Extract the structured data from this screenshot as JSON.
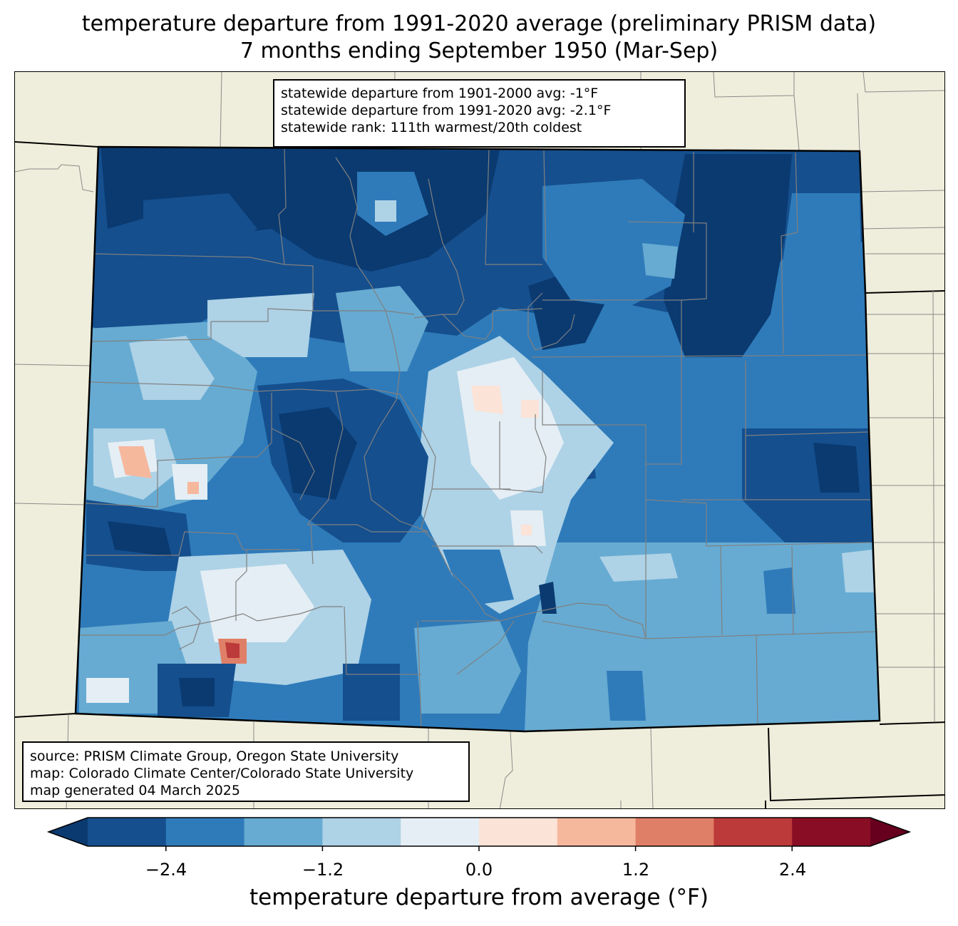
{
  "title_line1": "temperature departure from 1991-2020 average (preliminary PRISM data)",
  "title_line2": "7 months ending September 1950 (Mar-Sep)",
  "stats": {
    "line1": "statewide departure from 1901-2000 avg: -1°F",
    "line2": "statewide departure from 1991-2020 avg: -2.1°F",
    "line3": "statewide rank: 111th warmest/20th coldest"
  },
  "source": {
    "line1": "source: PRISM Climate Group, Oregon State University",
    "line2": "map: Colorado Climate Center/Colorado State University",
    "line3": "map generated 04 March 2025"
  },
  "colorbar": {
    "label": "temperature departure from average (°F)",
    "ticks": [
      "−2.4",
      "−1.2",
      "0.0",
      "1.2",
      "2.4"
    ],
    "levels": [
      -3.0,
      -2.4,
      -1.8,
      -1.2,
      -0.6,
      0.0,
      0.6,
      1.2,
      1.8,
      2.4,
      3.0
    ],
    "colors": [
      "#0a3a70",
      "#154f8e",
      "#2f7bba",
      "#67abd2",
      "#aed2e6",
      "#e4eef4",
      "#fbe3d7",
      "#f6b89d",
      "#e07f67",
      "#bc3a3a",
      "#890d24",
      "#67001f"
    ]
  },
  "colors": {
    "land": "#efeedc",
    "state_border": "#000000",
    "county_border": "#808080"
  }
}
